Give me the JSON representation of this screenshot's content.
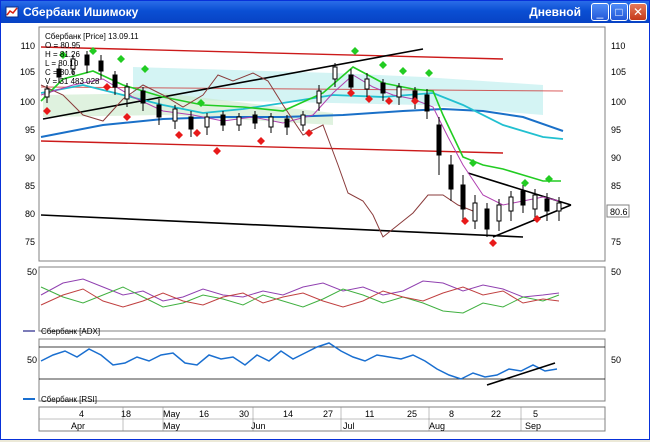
{
  "window": {
    "title": "Сбербанк Ишимоку",
    "period": "Дневной",
    "minimize_glyph": "_",
    "maximize_glyph": "□",
    "close_glyph": "✕"
  },
  "price_panel": {
    "legend_title": "Сбербанк [Price] 13.09.11",
    "legend_lines": [
      "O = 80.95",
      "H = 81.26",
      "L = 80.10",
      "C = 80.6",
      "V = 31 483 028"
    ],
    "current_price_label": "80.6",
    "y_ticks": [
      "110",
      "105",
      "100",
      "95",
      "90",
      "85",
      "80",
      "75"
    ]
  },
  "adx_panel": {
    "label": "Сбербанк [ADX]",
    "y_tick": "50"
  },
  "rsi_panel": {
    "label": "Сбербанк [RSI]",
    "y_tick": "50"
  },
  "time_axis": {
    "days": [
      "4",
      "18",
      "May",
      "16",
      "30",
      "14",
      "27",
      "11",
      "25",
      "8",
      "22",
      "5",
      "Sep"
    ],
    "months": [
      "Apr",
      "May",
      "Jun",
      "Jul",
      "Aug",
      "Sep"
    ]
  },
  "chart_data": {
    "type": "candlestick",
    "title": "Сбербанк [Price] 13.09.11",
    "ylim": [
      73,
      112
    ],
    "last_close": 80.6,
    "ohlcv_last": {
      "open": 80.95,
      "high": 81.26,
      "low": 80.1,
      "close": 80.6,
      "volume": 31483028
    },
    "series": [
      {
        "name": "Сбербанк [ADX]",
        "ylim": [
          0,
          60
        ]
      },
      {
        "name": "Сбербанк [RSI]",
        "ylim": [
          0,
          100
        ]
      }
    ]
  },
  "colors": {
    "titlebar": "#0a4fd3",
    "support_line": "#000000",
    "resistance_red": "#cc1a1a",
    "kijun_green": "#22cc22",
    "tenkan_cyan": "#22c0d0",
    "ma_blue": "#1a70c8",
    "chikou": "#8a3b3b",
    "bull_marker": "#22cc22",
    "bear_marker": "#e81a1a",
    "rsi_line": "#1a6fd0"
  }
}
